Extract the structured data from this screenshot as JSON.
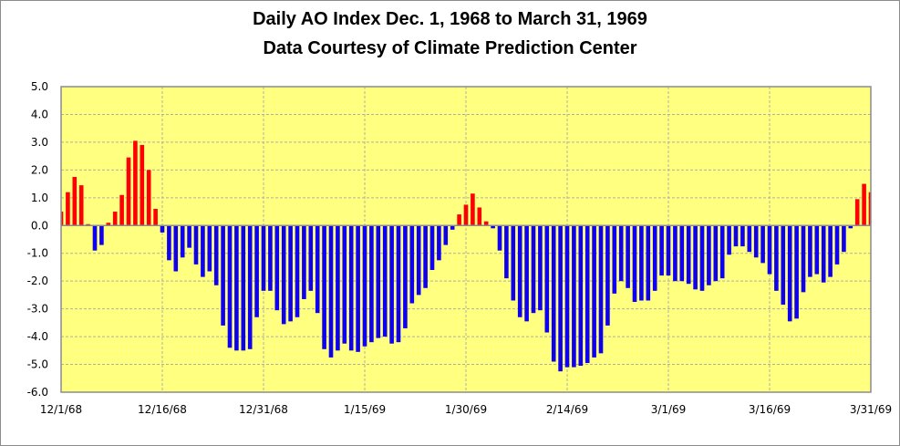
{
  "chart_data": {
    "type": "bar",
    "title": "Daily AO Index Dec. 1, 1968 to March 31, 1969",
    "subtitle": "Data Courtesy of Climate Prediction Center",
    "xlabel": "",
    "ylabel": "",
    "ylim": [
      -6.0,
      5.0
    ],
    "yticks": [
      "5.0",
      "4.0",
      "3.0",
      "2.0",
      "1.0",
      "0.0",
      "-1.0",
      "-2.0",
      "-3.0",
      "-4.0",
      "-5.0",
      "-6.0"
    ],
    "ytick_values": [
      5,
      4,
      3,
      2,
      1,
      0,
      -1,
      -2,
      -3,
      -4,
      -5,
      -6
    ],
    "xticks": [
      "12/1/68",
      "12/16/68",
      "12/31/68",
      "1/15/69",
      "1/30/69",
      "2/14/69",
      "3/1/69",
      "3/16/69",
      "3/31/69"
    ],
    "xtick_day_index": [
      0,
      15,
      30,
      45,
      60,
      75,
      90,
      105,
      120
    ],
    "grid": true,
    "start_date": "12/1/68",
    "end_date": "3/31/69",
    "colors": {
      "positive": "#ff0000",
      "negative": "#1000f0",
      "plot_background": "#ffff80",
      "grid": "#b0b0a0"
    },
    "values": [
      0.5,
      1.2,
      1.75,
      1.45,
      0.05,
      -0.9,
      -0.7,
      0.1,
      0.5,
      1.1,
      2.45,
      3.05,
      2.9,
      2.0,
      0.6,
      -0.25,
      -1.25,
      -1.65,
      -1.15,
      -0.8,
      -1.4,
      -1.85,
      -1.65,
      -2.15,
      -3.6,
      -4.4,
      -4.5,
      -4.5,
      -4.45,
      -3.3,
      -2.35,
      -2.35,
      -3.05,
      -3.55,
      -3.45,
      -3.3,
      -2.65,
      -2.35,
      -3.15,
      -4.45,
      -4.75,
      -4.5,
      -4.25,
      -4.5,
      -4.55,
      -4.35,
      -4.2,
      -4.05,
      -4.0,
      -4.25,
      -4.2,
      -3.7,
      -2.8,
      -2.5,
      -2.25,
      -1.6,
      -1.25,
      -0.7,
      -0.15,
      0.4,
      0.75,
      1.15,
      0.65,
      0.15,
      -0.1,
      -0.9,
      -1.9,
      -2.7,
      -3.3,
      -3.45,
      -3.15,
      -3.05,
      -3.85,
      -4.9,
      -5.25,
      -5.1,
      -5.1,
      -5.05,
      -4.95,
      -4.75,
      -4.6,
      -3.6,
      -2.45,
      -2.0,
      -2.25,
      -2.75,
      -2.7,
      -2.7,
      -2.35,
      -1.8,
      -1.8,
      -2.0,
      -2.0,
      -2.1,
      -2.3,
      -2.35,
      -2.15,
      -2.0,
      -1.9,
      -1.05,
      -0.75,
      -0.75,
      -0.95,
      -1.15,
      -1.35,
      -1.75,
      -2.35,
      -2.85,
      -3.45,
      -3.35,
      -2.4,
      -1.85,
      -1.75,
      -2.05,
      -1.85,
      -1.4,
      -0.95,
      -0.1,
      0.95,
      1.5,
      1.2
    ]
  }
}
